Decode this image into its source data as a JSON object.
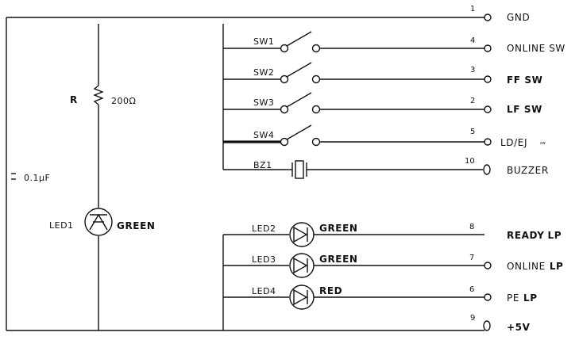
{
  "left_circuit": {
    "resistor": {
      "ref": "R",
      "value": "200Ω"
    },
    "capacitor": {
      "value": "0.1μF"
    },
    "led": {
      "ref": "LED1",
      "color": "GREEN"
    }
  },
  "switches": [
    {
      "ref": "SW1",
      "pin": "4",
      "signal": "ONLINE SW",
      "bold": false
    },
    {
      "ref": "SW2",
      "pin": "3",
      "signal": "FF SW",
      "bold": true
    },
    {
      "ref": "SW3",
      "pin": "2",
      "signal": "LF SW",
      "bold": true
    },
    {
      "ref": "SW4",
      "pin": "5",
      "signal": "LD/EJ",
      "note": "sw",
      "bold": false
    }
  ],
  "buzzer": {
    "ref": "BZ1",
    "pin": "10",
    "signal": "BUZZER"
  },
  "leds": [
    {
      "ref": "LED2",
      "color": "GREEN",
      "pin": "8",
      "signal_a": "READY",
      "signal_b": "LP"
    },
    {
      "ref": "LED3",
      "color": "GREEN",
      "pin": "7",
      "signal_a": "ONLINE",
      "signal_b": "LP"
    },
    {
      "ref": "LED4",
      "color": "RED",
      "pin": "6",
      "signal_a": "PE",
      "signal_b": "LP"
    }
  ],
  "power": {
    "gnd": {
      "pin": "1",
      "signal": "GND"
    },
    "vcc": {
      "pin": "9",
      "signal": "+5V"
    }
  }
}
